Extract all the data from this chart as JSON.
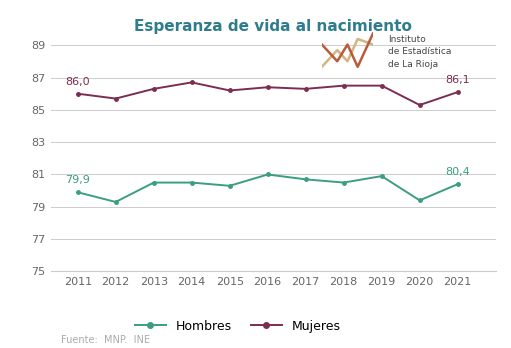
{
  "title": "Esperanza de vida al nacimiento",
  "years": [
    2011,
    2012,
    2013,
    2014,
    2015,
    2016,
    2017,
    2018,
    2019,
    2020,
    2021
  ],
  "hombres": [
    79.9,
    79.3,
    80.5,
    80.5,
    80.3,
    81.0,
    80.7,
    80.5,
    80.9,
    79.4,
    80.4
  ],
  "mujeres": [
    86.0,
    85.7,
    86.3,
    86.7,
    86.2,
    86.4,
    86.3,
    86.5,
    86.5,
    85.3,
    86.1
  ],
  "hombres_color": "#3a9e82",
  "mujeres_color": "#7b2d52",
  "title_color": "#2e7d8c",
  "ylim": [
    75,
    89
  ],
  "yticks": [
    75,
    77,
    79,
    81,
    83,
    85,
    87,
    89
  ],
  "background_color": "#ffffff",
  "grid_color": "#cccccc",
  "title_fontsize": 11,
  "annot_fontsize": 8,
  "tick_fontsize": 8,
  "source_text": "Fuente:  MNP.  INE",
  "annotation_first_hombres": "79,9",
  "annotation_last_hombres": "80,4",
  "annotation_first_mujeres": "86,0",
  "annotation_last_mujeres": "86,1",
  "logo_text": "Instituto\nde Estadística\nde La Rioja",
  "logo_line1_color": "#d4b483",
  "logo_line2_color": "#b85c3a",
  "legend_hombres": "Hombres",
  "legend_mujeres": "Mujeres"
}
